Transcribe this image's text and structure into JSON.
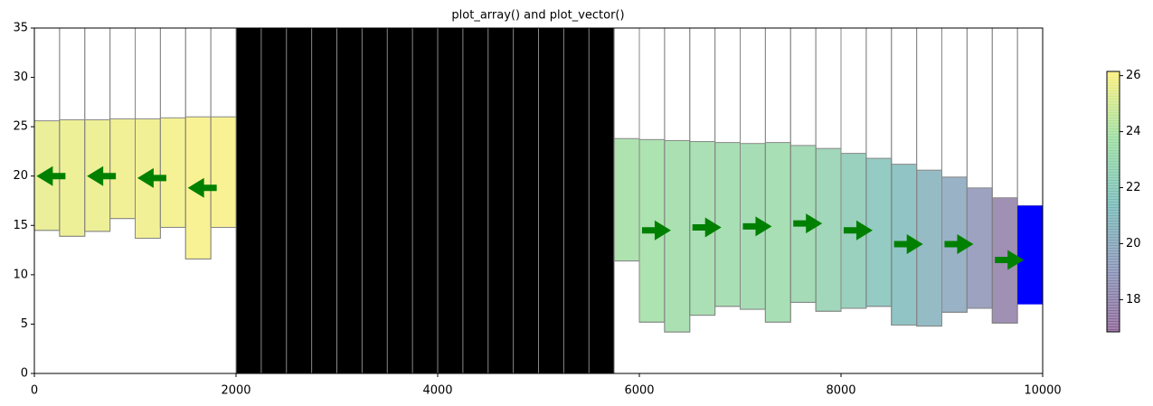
{
  "chart_data": {
    "type": "cross_section",
    "title": "plot_array() and plot_vector()",
    "xlim": [
      0,
      10000
    ],
    "xticks": [
      0,
      2000,
      4000,
      6000,
      8000,
      10000
    ],
    "ylim": [
      0,
      35
    ],
    "yticks": [
      0,
      5,
      10,
      15,
      20,
      25,
      30,
      35
    ],
    "colormap": [
      "#440154",
      "#3b528b",
      "#21918c",
      "#5ec962",
      "#fde725"
    ],
    "alpha": 0.5,
    "clim": [
      16.85,
      26.15
    ],
    "cticks": [
      18,
      20,
      22,
      24,
      26
    ],
    "cells": [
      {
        "x": [
          0,
          250
        ],
        "bottom": 14.5,
        "head": 25.6
      },
      {
        "x": [
          250,
          500
        ],
        "bottom": 13.9,
        "head": 25.7
      },
      {
        "x": [
          500,
          750
        ],
        "bottom": 14.4,
        "head": 25.7
      },
      {
        "x": [
          750,
          1000
        ],
        "bottom": 15.7,
        "head": 25.8
      },
      {
        "x": [
          1000,
          1250
        ],
        "bottom": 13.7,
        "head": 25.8
      },
      {
        "x": [
          1250,
          1500
        ],
        "bottom": 14.8,
        "head": 25.9
      },
      {
        "x": [
          1500,
          1750
        ],
        "bottom": 11.6,
        "head": 26.0
      },
      {
        "x": [
          1750,
          2000
        ],
        "bottom": 14.8,
        "head": 26.0
      },
      {
        "x": [
          5750,
          6000
        ],
        "bottom": 11.4,
        "head": 23.8
      },
      {
        "x": [
          6000,
          6250
        ],
        "bottom": 5.2,
        "head": 23.7
      },
      {
        "x": [
          6250,
          6500
        ],
        "bottom": 4.2,
        "head": 23.6
      },
      {
        "x": [
          6500,
          6750
        ],
        "bottom": 5.9,
        "head": 23.5
      },
      {
        "x": [
          6750,
          7000
        ],
        "bottom": 6.8,
        "head": 23.4
      },
      {
        "x": [
          7000,
          7250
        ],
        "bottom": 6.5,
        "head": 23.3
      },
      {
        "x": [
          7250,
          7500
        ],
        "bottom": 5.2,
        "head": 23.4
      },
      {
        "x": [
          7500,
          7750
        ],
        "bottom": 7.2,
        "head": 23.1
      },
      {
        "x": [
          7750,
          8000
        ],
        "bottom": 6.3,
        "head": 22.8
      },
      {
        "x": [
          8000,
          8250
        ],
        "bottom": 6.6,
        "head": 22.3
      },
      {
        "x": [
          8250,
          8500
        ],
        "bottom": 6.8,
        "head": 21.8
      },
      {
        "x": [
          8500,
          8750
        ],
        "bottom": 4.9,
        "head": 21.2
      },
      {
        "x": [
          8750,
          9000
        ],
        "bottom": 4.8,
        "head": 20.6
      },
      {
        "x": [
          9000,
          9250
        ],
        "bottom": 6.2,
        "head": 19.9
      },
      {
        "x": [
          9250,
          9500
        ],
        "bottom": 6.6,
        "head": 18.8
      },
      {
        "x": [
          9500,
          9750
        ],
        "bottom": 5.1,
        "head": 17.8
      }
    ],
    "constant_head": {
      "x": [
        9750,
        10000
      ],
      "bottom": 7.0,
      "head": 17.0,
      "color": "#0000ff"
    },
    "inactive": {
      "color": "#000000",
      "edges": [
        2000,
        2250,
        2500,
        2750,
        3000,
        3250,
        3500,
        3750,
        4000,
        4250,
        4500,
        4750,
        5000,
        5250,
        5500,
        5750
      ]
    },
    "vector_color": "#008000",
    "vectors": [
      {
        "x": 165,
        "y": 20.0,
        "direction": "left"
      },
      {
        "x": 665,
        "y": 20.0,
        "direction": "left"
      },
      {
        "x": 1165,
        "y": 19.8,
        "direction": "left"
      },
      {
        "x": 1665,
        "y": 18.8,
        "direction": "left"
      },
      {
        "x": 6170,
        "y": 14.5,
        "direction": "right"
      },
      {
        "x": 6670,
        "y": 14.8,
        "direction": "right"
      },
      {
        "x": 7170,
        "y": 14.9,
        "direction": "right"
      },
      {
        "x": 7670,
        "y": 15.2,
        "direction": "right"
      },
      {
        "x": 8170,
        "y": 14.5,
        "direction": "right"
      },
      {
        "x": 8670,
        "y": 13.1,
        "direction": "right"
      },
      {
        "x": 9170,
        "y": 13.1,
        "direction": "right"
      },
      {
        "x": 9670,
        "y": 11.5,
        "direction": "right"
      }
    ]
  }
}
